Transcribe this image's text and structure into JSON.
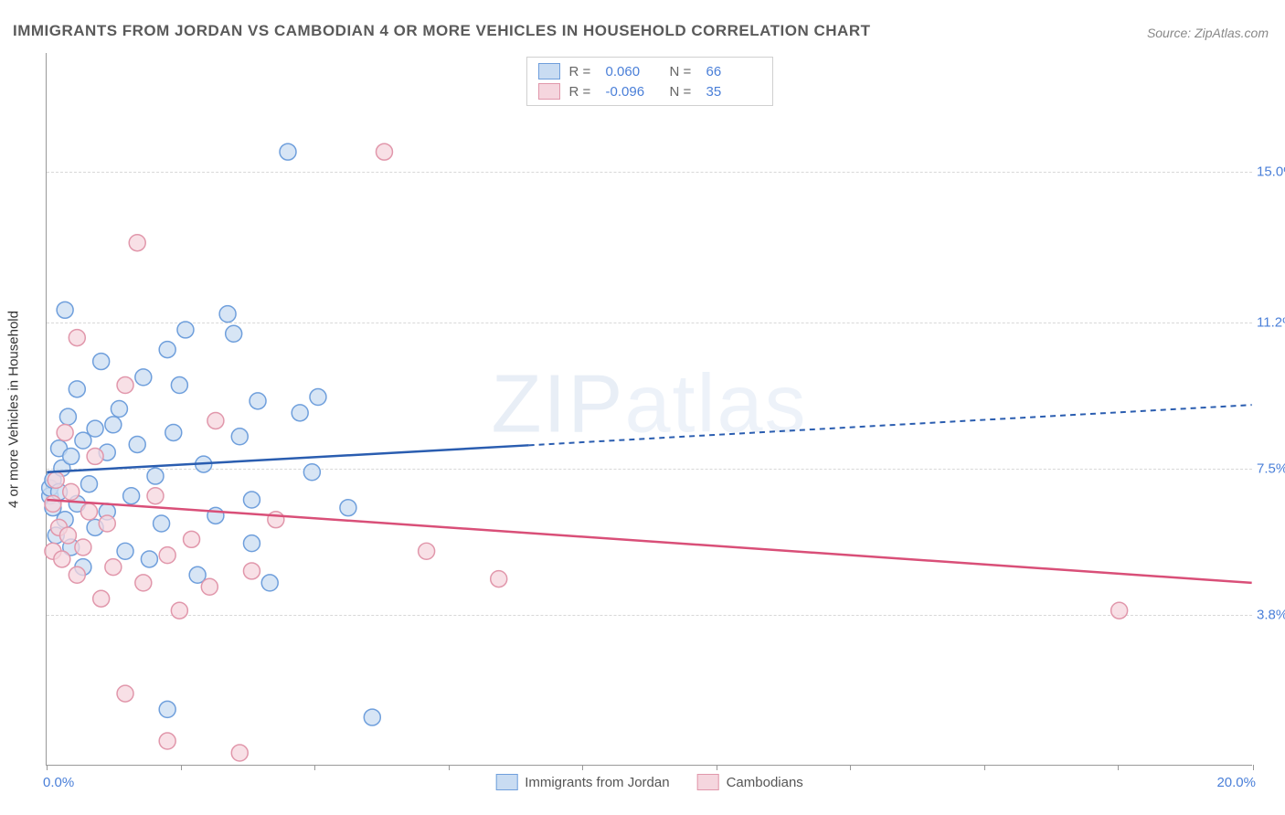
{
  "title": "IMMIGRANTS FROM JORDAN VS CAMBODIAN 4 OR MORE VEHICLES IN HOUSEHOLD CORRELATION CHART",
  "source": "Source: ZipAtlas.com",
  "watermark": "ZIPatlas",
  "y_axis_title": "4 or more Vehicles in Household",
  "chart": {
    "type": "scatter",
    "xlim": [
      0.0,
      20.0
    ],
    "ylim": [
      0.0,
      18.0
    ],
    "x_label_start": "0.0%",
    "x_label_end": "20.0%",
    "y_ticks": [
      3.8,
      7.5,
      11.2,
      15.0
    ],
    "y_tick_labels": [
      "3.8%",
      "7.5%",
      "11.2%",
      "15.0%"
    ],
    "x_tick_positions": [
      0,
      2.22,
      4.44,
      6.66,
      8.88,
      11.1,
      13.32,
      15.54,
      17.76,
      20.0
    ],
    "background_color": "#ffffff",
    "grid_color": "#d8d8d8",
    "series": [
      {
        "name": "Immigrants from Jordan",
        "r_value": "0.060",
        "n_value": "66",
        "point_fill": "#c9dcf2",
        "point_stroke": "#6f9fdc",
        "line_color": "#2a5db0",
        "trend_y_start": 7.4,
        "trend_y_end": 9.1,
        "trend_solid_until_x": 8.0,
        "data": [
          [
            0.05,
            6.8
          ],
          [
            0.05,
            7.0
          ],
          [
            0.1,
            6.5
          ],
          [
            0.1,
            7.2
          ],
          [
            0.15,
            5.8
          ],
          [
            0.2,
            8.0
          ],
          [
            0.2,
            6.9
          ],
          [
            0.25,
            7.5
          ],
          [
            0.3,
            11.5
          ],
          [
            0.3,
            6.2
          ],
          [
            0.35,
            8.8
          ],
          [
            0.4,
            5.5
          ],
          [
            0.4,
            7.8
          ],
          [
            0.5,
            6.6
          ],
          [
            0.5,
            9.5
          ],
          [
            0.6,
            8.2
          ],
          [
            0.6,
            5.0
          ],
          [
            0.7,
            7.1
          ],
          [
            0.8,
            6.0
          ],
          [
            0.8,
            8.5
          ],
          [
            0.9,
            10.2
          ],
          [
            1.0,
            6.4
          ],
          [
            1.0,
            7.9
          ],
          [
            1.1,
            8.6
          ],
          [
            1.2,
            9.0
          ],
          [
            1.3,
            5.4
          ],
          [
            1.4,
            6.8
          ],
          [
            1.5,
            8.1
          ],
          [
            1.6,
            9.8
          ],
          [
            1.7,
            5.2
          ],
          [
            1.8,
            7.3
          ],
          [
            1.9,
            6.1
          ],
          [
            2.0,
            10.5
          ],
          [
            2.0,
            1.4
          ],
          [
            2.1,
            8.4
          ],
          [
            2.2,
            9.6
          ],
          [
            2.3,
            11.0
          ],
          [
            2.5,
            4.8
          ],
          [
            2.6,
            7.6
          ],
          [
            2.8,
            6.3
          ],
          [
            3.0,
            11.4
          ],
          [
            3.1,
            10.9
          ],
          [
            3.2,
            8.3
          ],
          [
            3.4,
            5.6
          ],
          [
            3.4,
            6.7
          ],
          [
            3.5,
            9.2
          ],
          [
            3.7,
            4.6
          ],
          [
            4.0,
            15.5
          ],
          [
            4.2,
            8.9
          ],
          [
            4.4,
            7.4
          ],
          [
            4.5,
            9.3
          ],
          [
            5.0,
            6.5
          ],
          [
            5.4,
            1.2
          ]
        ]
      },
      {
        "name": "Cambodians",
        "r_value": "-0.096",
        "n_value": "35",
        "point_fill": "#f5d6de",
        "point_stroke": "#e197ab",
        "line_color": "#d94f78",
        "trend_y_start": 6.7,
        "trend_y_end": 4.6,
        "trend_solid_until_x": 20.0,
        "data": [
          [
            0.1,
            6.6
          ],
          [
            0.1,
            5.4
          ],
          [
            0.15,
            7.2
          ],
          [
            0.2,
            6.0
          ],
          [
            0.25,
            5.2
          ],
          [
            0.3,
            8.4
          ],
          [
            0.35,
            5.8
          ],
          [
            0.4,
            6.9
          ],
          [
            0.5,
            10.8
          ],
          [
            0.5,
            4.8
          ],
          [
            0.6,
            5.5
          ],
          [
            0.7,
            6.4
          ],
          [
            0.8,
            7.8
          ],
          [
            0.9,
            4.2
          ],
          [
            1.0,
            6.1
          ],
          [
            1.1,
            5.0
          ],
          [
            1.3,
            1.8
          ],
          [
            1.3,
            9.6
          ],
          [
            1.5,
            13.2
          ],
          [
            1.6,
            4.6
          ],
          [
            1.8,
            6.8
          ],
          [
            2.0,
            5.3
          ],
          [
            2.0,
            0.6
          ],
          [
            2.2,
            3.9
          ],
          [
            2.4,
            5.7
          ],
          [
            2.7,
            4.5
          ],
          [
            2.8,
            8.7
          ],
          [
            3.2,
            0.3
          ],
          [
            3.4,
            4.9
          ],
          [
            3.8,
            6.2
          ],
          [
            5.6,
            15.5
          ],
          [
            6.3,
            5.4
          ],
          [
            7.5,
            4.7
          ],
          [
            17.8,
            3.9
          ]
        ]
      }
    ]
  }
}
